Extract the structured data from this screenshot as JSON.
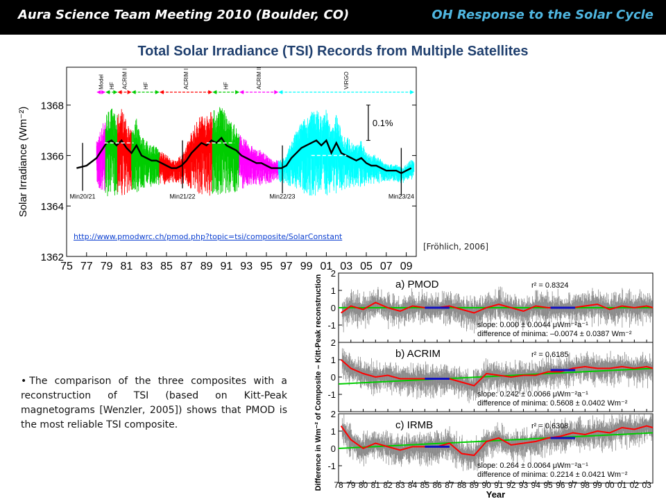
{
  "header": {
    "meeting": "Aura Science Team Meeting 2010 (Boulder, CO)",
    "topic": "OH Response to the Solar Cycle"
  },
  "headline": "Total Solar Irradiance (TSI) Records from Multiple Satellites",
  "link": "http://www.pmodwrc.ch/pmod.php?topic=tsi/composite/SolarConstant",
  "citation": "[Fröhlich, 2006]",
  "note": {
    "bullet": "•",
    "text": "The comparison of the three composites with a reconstruction of TSI (based on Kitt-Peak magnetograms [Wenzler, 2005]) shows that PMOD is the most reliable TSI composite."
  },
  "colors": {
    "model": "#ff00ff",
    "hf": "#00cc00",
    "acrim": "#ff0000",
    "virgo": "#00ffff",
    "daily_line": "#000000",
    "fit": "#00cc00",
    "smoothed": "#ff0000",
    "minima": "#1010c0",
    "title": "#1f3f6e",
    "topic": "#4fb6e0"
  },
  "chart_data": [
    {
      "type": "line",
      "ylabel": "Solar Irradiance (Wm⁻²)",
      "ylim": [
        1362,
        1369.5
      ],
      "yticks": [
        1362,
        1364,
        1366,
        1368
      ],
      "xlim": [
        1975,
        2010
      ],
      "xtick_labels": [
        "75",
        "77",
        "79",
        "81",
        "83",
        "85",
        "87",
        "89",
        "91",
        "93",
        "95",
        "97",
        "99",
        "01",
        "03",
        "05",
        "07",
        "09"
      ],
      "grid": false,
      "scale_bar_label": "0.1%",
      "instrument_periods": [
        {
          "label": "Model",
          "start": 1978.0,
          "end": 1978.9,
          "color": "#ff00ff"
        },
        {
          "label": "HF",
          "start": 1978.9,
          "end": 1980.1,
          "color": "#00cc00"
        },
        {
          "label": "ACRIM I",
          "start": 1980.1,
          "end": 1981.5,
          "color": "#ff0000"
        },
        {
          "label": "HF",
          "start": 1981.5,
          "end": 1984.3,
          "color": "#00cc00"
        },
        {
          "label": "ACRIM I",
          "start": 1984.3,
          "end": 1989.6,
          "color": "#ff0000"
        },
        {
          "label": "HF",
          "start": 1989.6,
          "end": 1992.3,
          "color": "#00cc00"
        },
        {
          "label": "ACRIM II",
          "start": 1992.3,
          "end": 1996.2,
          "color": "#ff00ff"
        },
        {
          "label": "VIRGO",
          "start": 1996.2,
          "end": 2009.8,
          "color": "#00ffff"
        }
      ],
      "minima_labels": [
        {
          "label": "Min20/21",
          "x": 1976.6,
          "y": 1365.5
        },
        {
          "label": "Min21/22",
          "x": 1986.6,
          "y": 1365.6
        },
        {
          "label": "Min22/23",
          "x": 1996.6,
          "y": 1365.4
        },
        {
          "label": "Min23/24",
          "x": 2008.5,
          "y": 1365.3
        }
      ],
      "cycle_means": [
        {
          "x_start": 1978.8,
          "x_end": 1981.7,
          "y": 1366.5
        },
        {
          "x_start": 1989.0,
          "x_end": 1991.8,
          "y": 1366.5
        },
        {
          "x_start": 1999.5,
          "x_end": 2003.0,
          "y": 1366.0
        }
      ],
      "series": [
        {
          "name": "",
          "color": "#000000",
          "x": [
            1976.0,
            1977.0,
            1978.0,
            1978.5,
            1979.0,
            1979.5,
            1980.0,
            1980.5,
            1981.0,
            1981.5,
            1982.0,
            1982.5,
            1983.0,
            1983.5,
            1984.0,
            1984.5,
            1985.0,
            1985.5,
            1986.0,
            1986.5,
            1987.0,
            1987.5,
            1988.0,
            1988.5,
            1989.0,
            1989.5,
            1990.0,
            1990.5,
            1991.0,
            1991.5,
            1992.0,
            1992.5,
            1993.0,
            1993.5,
            1994.0,
            1994.5,
            1995.0,
            1995.5,
            1996.0,
            1996.5,
            1997.0,
            1997.5,
            1998.0,
            1998.5,
            1999.0,
            1999.5,
            2000.0,
            2000.5,
            2001.0,
            2001.5,
            2002.0,
            2002.5,
            2003.0,
            2003.5,
            2004.0,
            2004.5,
            2005.0,
            2005.5,
            2006.0,
            2006.5,
            2007.0,
            2007.5,
            2008.0,
            2008.5,
            2009.0,
            2009.5
          ],
          "y": [
            1365.5,
            1365.6,
            1365.9,
            1366.2,
            1366.5,
            1366.6,
            1366.4,
            1366.6,
            1366.3,
            1366.1,
            1366.4,
            1366.0,
            1365.9,
            1365.8,
            1365.8,
            1365.7,
            1365.6,
            1365.5,
            1365.5,
            1365.6,
            1365.8,
            1366.1,
            1366.3,
            1366.5,
            1366.4,
            1366.6,
            1366.5,
            1366.7,
            1366.4,
            1366.3,
            1366.2,
            1366.0,
            1365.9,
            1365.8,
            1365.7,
            1365.7,
            1365.6,
            1365.5,
            1365.5,
            1365.5,
            1365.6,
            1365.9,
            1366.1,
            1366.3,
            1366.4,
            1366.5,
            1366.6,
            1366.4,
            1366.6,
            1366.1,
            1366.5,
            1366.1,
            1366.0,
            1365.9,
            1365.8,
            1365.9,
            1365.7,
            1365.6,
            1365.6,
            1365.5,
            1365.4,
            1365.4,
            1365.4,
            1365.3,
            1365.4,
            1365.5
          ]
        }
      ]
    },
    {
      "type": "line",
      "xlabel": "Year",
      "ylabel": "Difference in Wm⁻² of Composite – Kitt-Peak reconstruction",
      "xlim": [
        1978,
        2003.5
      ],
      "xtick_labels": [
        "78",
        "79",
        "80",
        "81",
        "82",
        "83",
        "84",
        "85",
        "86",
        "87",
        "88",
        "89",
        "90",
        "91",
        "92",
        "93",
        "94",
        "95",
        "96",
        "97",
        "98",
        "99",
        "00",
        "01",
        "02",
        "03"
      ],
      "panels": [
        {
          "title": "a) PMOD",
          "r2": "r² = 0.8324",
          "slope": "slope: 0.000 ± 0.0044 μWm⁻²a⁻¹",
          "minima_diff": "difference of minima: –0.0074 ± 0.0387 Wm⁻²",
          "ylim": [
            -2,
            2
          ],
          "yticks": [
            -1,
            0,
            1,
            2
          ],
          "fit": {
            "x": [
              1978,
              2003.5
            ],
            "y": [
              0.0,
              0.0
            ]
          },
          "minima_segments": [
            {
              "x_start": 1985.0,
              "x_end": 1987.0,
              "y": 0.0
            },
            {
              "x_start": 1995.2,
              "x_end": 1997.2,
              "y": 0.0
            }
          ],
          "series": [
            {
              "name": "",
              "x": [
                1978.2,
                1979,
                1980,
                1981,
                1982,
                1983,
                1984,
                1985,
                1986,
                1987,
                1988,
                1989,
                1990,
                1991,
                1992,
                1993,
                1994,
                1995,
                1996,
                1997,
                1998,
                1999,
                2000,
                2001,
                2002,
                2003,
                2003.5
              ],
              "y": [
                -0.3,
                0.1,
                -0.1,
                0.3,
                0.0,
                -0.2,
                0.1,
                0.0,
                0.0,
                0.1,
                -0.1,
                -0.3,
                0.0,
                0.2,
                0.0,
                -0.2,
                0.1,
                0.0,
                0.0,
                0.0,
                0.1,
                0.2,
                -0.1,
                0.1,
                0.0,
                0.1,
                0.0
              ]
            }
          ]
        },
        {
          "title": "b) ACRIM",
          "r2": "r² = 0.6185",
          "slope": "slope: 0.242 ± 0.0066 μWm⁻²a⁻¹",
          "minima_diff": "difference of minima: 0.5608 ± 0.0402 Wm⁻²",
          "ylim": [
            -2,
            2
          ],
          "yticks": [
            -1,
            0,
            1,
            2
          ],
          "fit": {
            "x": [
              1978,
              2003.5
            ],
            "y": [
              -0.4,
              0.5
            ]
          },
          "minima_segments": [
            {
              "x_start": 1985.0,
              "x_end": 1987.0,
              "y": -0.1
            },
            {
              "x_start": 1995.2,
              "x_end": 1997.2,
              "y": 0.4
            }
          ],
          "series": [
            {
              "name": "",
              "x": [
                1978.2,
                1979,
                1980,
                1981,
                1982,
                1983,
                1984,
                1985,
                1986,
                1987,
                1988,
                1989,
                1990,
                1991,
                1992,
                1993,
                1994,
                1995,
                1996,
                1997,
                1998,
                1999,
                2000,
                2001,
                2002,
                2003,
                2003.5
              ],
              "y": [
                1.0,
                0.5,
                0.2,
                0.0,
                0.1,
                -0.1,
                -0.1,
                -0.1,
                -0.1,
                -0.1,
                -0.3,
                -0.5,
                0.2,
                0.1,
                0.0,
                0.1,
                0.1,
                0.3,
                0.3,
                0.5,
                0.6,
                0.5,
                0.5,
                0.6,
                0.5,
                0.6,
                0.5
              ]
            }
          ]
        },
        {
          "title": "c) IRMB",
          "r2": "r² = 0.6308",
          "slope": "slope: 0.264 ± 0.0064 μWm⁻²a⁻¹",
          "minima_diff": "difference of minima: 0.2214 ± 0.0421 Wm⁻²",
          "ylim": [
            -2,
            2
          ],
          "yticks": [
            -1,
            0,
            1,
            2
          ],
          "fit": {
            "x": [
              1978,
              2003.5
            ],
            "y": [
              0.0,
              0.9
            ]
          },
          "minima_segments": [
            {
              "x_start": 1985.0,
              "x_end": 1987.0,
              "y": 0.1
            },
            {
              "x_start": 1995.2,
              "x_end": 1997.2,
              "y": 0.6
            }
          ],
          "series": [
            {
              "name": "",
              "x": [
                1978.2,
                1979,
                1980,
                1981,
                1982,
                1983,
                1984,
                1985,
                1986,
                1987,
                1988,
                1989,
                1990,
                1991,
                1992,
                1993,
                1994,
                1995,
                1996,
                1997,
                1998,
                1999,
                2000,
                2001,
                2002,
                2003,
                2003.5
              ],
              "y": [
                1.3,
                0.5,
                0.0,
                0.3,
                0.1,
                -0.1,
                0.1,
                0.1,
                0.1,
                0.3,
                -0.3,
                -0.4,
                0.4,
                0.6,
                0.2,
                0.3,
                0.4,
                0.6,
                0.7,
                0.9,
                0.8,
                1.0,
                0.9,
                1.2,
                1.1,
                1.3,
                1.2
              ]
            }
          ]
        }
      ]
    }
  ]
}
